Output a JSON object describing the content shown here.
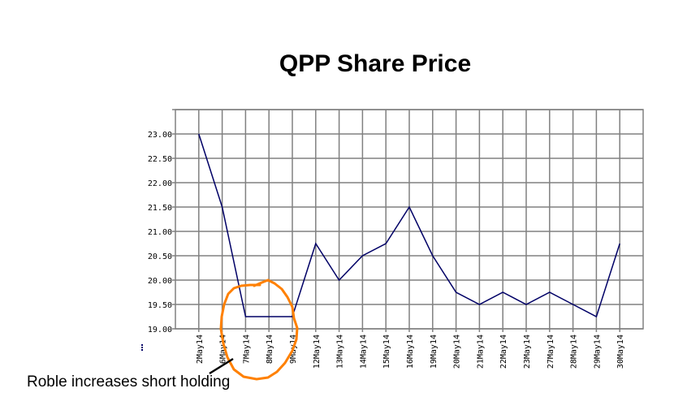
{
  "chart_data": {
    "type": "line",
    "title": "QPP Share Price",
    "xlabel": "",
    "ylabel": "",
    "categories": [
      "2May14",
      "6May14",
      "7May14",
      "8May14",
      "9May14",
      "12May14",
      "13May14",
      "14May14",
      "15May14",
      "16May14",
      "19May14",
      "20May14",
      "21May14",
      "22May14",
      "23May14",
      "27May14",
      "28May14",
      "29May14",
      "30May14"
    ],
    "series": [
      {
        "name": "QPP Share Price",
        "color": "#000066",
        "values": [
          23.0,
          21.5,
          19.25,
          19.25,
          19.25,
          20.75,
          20.0,
          20.5,
          20.75,
          21.5,
          20.5,
          19.75,
          19.5,
          19.75,
          19.5,
          19.75,
          19.5,
          19.25,
          20.75
        ]
      }
    ],
    "yticks": [
      "19.00",
      "19.50",
      "20.00",
      "20.50",
      "21.00",
      "21.50",
      "22.00",
      "22.50",
      "23.00"
    ],
    "ylim": [
      19.0,
      23.5
    ],
    "grid": true,
    "legend": "none",
    "annotations": [
      {
        "type": "hand-drawn-circle",
        "color": "#ff8000",
        "around": [
          "6May14",
          "7May14",
          "8May14",
          "9May14"
        ]
      },
      {
        "type": "text",
        "text": "Roble increases short holding",
        "pointer_line_color": "#000000"
      }
    ]
  },
  "annotation": {
    "text": "Roble increases short holding"
  }
}
